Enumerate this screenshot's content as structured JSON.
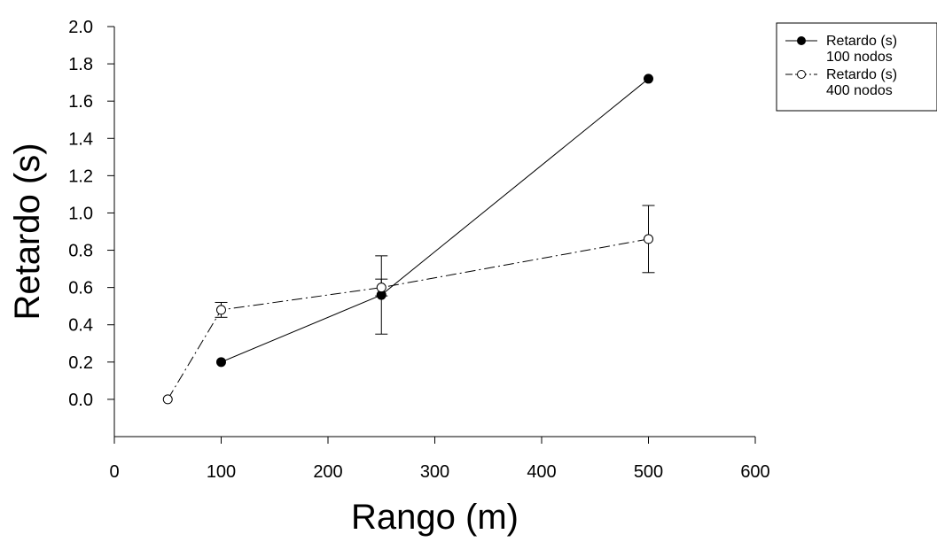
{
  "chart_data": {
    "type": "line",
    "title": "",
    "xlabel": "Rango (m)",
    "ylabel": "Retardo (s)",
    "xlim": [
      0,
      600
    ],
    "ylim": [
      -0.2,
      2.0
    ],
    "x_ticks": [
      0,
      100,
      200,
      300,
      400,
      500,
      600
    ],
    "y_ticks": [
      0.0,
      0.2,
      0.4,
      0.6,
      0.8,
      1.0,
      1.2,
      1.4,
      1.6,
      1.8,
      2.0
    ],
    "x_tick_labels": [
      "0",
      "100",
      "200",
      "300",
      "400",
      "500",
      "600"
    ],
    "y_tick_labels": [
      "0.0",
      "0.2",
      "0.4",
      "0.6",
      "0.8",
      "1.0",
      "1.2",
      "1.4",
      "1.6",
      "1.8",
      "2.0"
    ],
    "grid": false,
    "legend_position": "outside-right-top",
    "series": [
      {
        "name": "Retardo (s) 100 nodos",
        "legend_lines": [
          "Retardo (s)",
          "100 nodos"
        ],
        "marker": "filled-circle",
        "line_style": "solid",
        "color": "#000000",
        "points": [
          {
            "x": 100,
            "y": 0.2,
            "err": 0
          },
          {
            "x": 250,
            "y": 0.56,
            "err": 0.21
          },
          {
            "x": 500,
            "y": 1.72,
            "err": 0
          }
        ]
      },
      {
        "name": "Retardo (s) 400 nodos",
        "legend_lines": [
          "Retardo (s)",
          "400 nodos"
        ],
        "marker": "open-circle",
        "line_style": "dash-dot",
        "color": "#000000",
        "points": [
          {
            "x": 50,
            "y": 0.0,
            "err": 0
          },
          {
            "x": 100,
            "y": 0.48,
            "err": 0.04
          },
          {
            "x": 250,
            "y": 0.6,
            "err": 0.045
          },
          {
            "x": 500,
            "y": 0.86,
            "err": 0.18
          }
        ]
      }
    ]
  }
}
